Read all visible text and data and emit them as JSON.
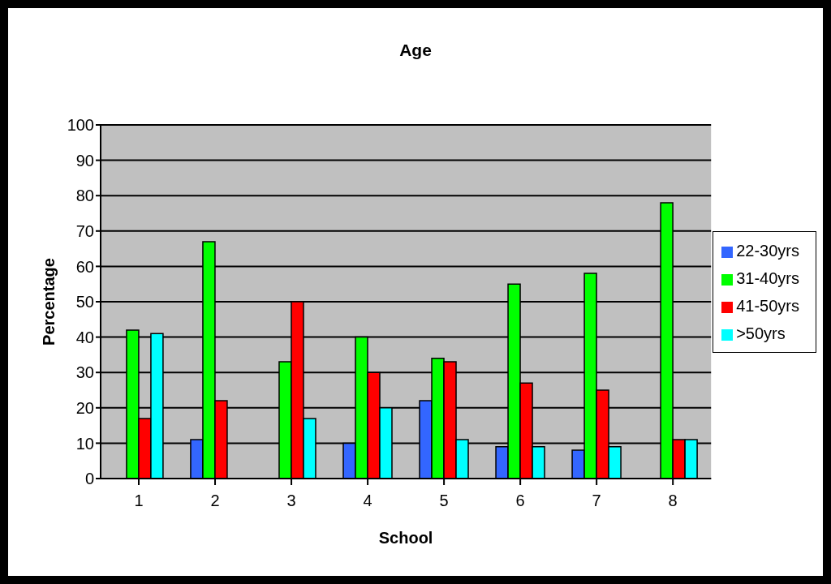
{
  "chart_data": {
    "type": "bar",
    "title": "Age",
    "xlabel": "School",
    "ylabel": "Percentage",
    "categories": [
      "1",
      "2",
      "3",
      "4",
      "5",
      "6",
      "7",
      "8"
    ],
    "series": [
      {
        "name": "22-30yrs",
        "color": "#3366ff",
        "values": [
          null,
          11,
          null,
          10,
          22,
          9,
          8,
          null
        ]
      },
      {
        "name": "31-40yrs",
        "color": "#00ff00",
        "values": [
          42,
          67,
          33,
          40,
          34,
          55,
          58,
          78
        ]
      },
      {
        "name": "41-50yrs",
        "color": "#ff0000",
        "values": [
          17,
          22,
          50,
          30,
          33,
          27,
          25,
          11
        ]
      },
      {
        "name": ">50yrs",
        "color": "#00ffff",
        "values": [
          41,
          null,
          17,
          20,
          11,
          9,
          9,
          11
        ]
      }
    ],
    "ylim": [
      0,
      100
    ],
    "yticks": [
      0,
      10,
      20,
      30,
      40,
      50,
      60,
      70,
      80,
      90,
      100
    ],
    "grid": "y",
    "legend": "right"
  }
}
